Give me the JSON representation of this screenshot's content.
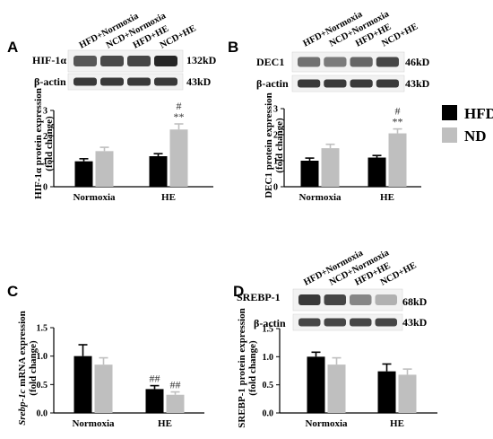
{
  "legend": {
    "items": [
      {
        "label": "HFD",
        "color": "#000000"
      },
      {
        "label": "ND",
        "color": "#bfbfbf"
      }
    ]
  },
  "panels": [
    {
      "letter": "A",
      "lanes": [
        "HFD+Normoxia",
        "NCD+Normoxia",
        "HFD+HE",
        "NCD+HE"
      ],
      "blots": [
        {
          "protein": "HIF-1α",
          "size": "132kD"
        },
        {
          "protein": "β-actin",
          "size": "43kD"
        }
      ]
    },
    {
      "letter": "B",
      "lanes": [
        "HFD+Normoxia",
        "NCD+Normoxia",
        "HFD+HE",
        "NCD+HE"
      ],
      "blots": [
        {
          "protein": "DEC1",
          "size": "46kD"
        },
        {
          "protein": "β-actin",
          "size": "43kD"
        }
      ]
    },
    {
      "letter": "C",
      "lanes": [],
      "blots": []
    },
    {
      "letter": "D",
      "lanes": [
        "HFD+Normoxia",
        "NCD+Normoxia",
        "HFD+HE",
        "NCD+HE"
      ],
      "blots": [
        {
          "protein": "SREBP-1",
          "size": "68kD"
        },
        {
          "protein": "β-actin",
          "size": "43kD"
        }
      ]
    }
  ],
  "chart_data": [
    {
      "panel": "A",
      "type": "bar",
      "ylabel": "HIF-1α protein expression (fold change)",
      "xlabel": "",
      "categories": [
        "Normoxia",
        "HE"
      ],
      "ylim": [
        0,
        3
      ],
      "yticks": [
        "0",
        "1",
        "2",
        "3"
      ],
      "series": [
        {
          "name": "HFD",
          "color": "#000000",
          "values": [
            1.0,
            1.2
          ],
          "errors": [
            0.1,
            0.1
          ]
        },
        {
          "name": "ND",
          "color": "#bfbfbf",
          "values": [
            1.4,
            2.25
          ],
          "errors": [
            0.15,
            0.22
          ]
        }
      ],
      "annotations": [
        {
          "category": "HE",
          "series": "ND",
          "lines": [
            "#",
            "**"
          ]
        }
      ]
    },
    {
      "panel": "B",
      "type": "bar",
      "ylabel": "DEC1 protein expression (fold change)",
      "xlabel": "",
      "categories": [
        "Normoxia",
        "HE"
      ],
      "ylim": [
        0,
        3
      ],
      "yticks": [
        "0",
        "1",
        "2",
        "3"
      ],
      "series": [
        {
          "name": "HFD",
          "color": "#000000",
          "values": [
            1.0,
            1.12
          ],
          "errors": [
            0.1,
            0.08
          ]
        },
        {
          "name": "ND",
          "color": "#bfbfbf",
          "values": [
            1.48,
            2.05
          ],
          "errors": [
            0.15,
            0.17
          ]
        }
      ],
      "annotations": [
        {
          "category": "HE",
          "series": "ND",
          "lines": [
            "#",
            "**"
          ]
        }
      ]
    },
    {
      "panel": "C",
      "type": "bar",
      "ylabel_italic": "Srebp-1c",
      "ylabel": " mRNA expression (fold change)",
      "xlabel": "",
      "categories": [
        "Normoxia",
        "HE"
      ],
      "ylim": [
        0,
        1.5
      ],
      "yticks": [
        "0.0",
        "0.5",
        "1.0",
        "1.5"
      ],
      "series": [
        {
          "name": "HFD",
          "color": "#000000",
          "values": [
            1.0,
            0.42
          ],
          "errors": [
            0.2,
            0.06
          ]
        },
        {
          "name": "ND",
          "color": "#bfbfbf",
          "values": [
            0.85,
            0.32
          ],
          "errors": [
            0.12,
            0.05
          ]
        }
      ],
      "annotations": [
        {
          "category": "HE",
          "series": "HFD",
          "lines": [
            "##"
          ]
        },
        {
          "category": "HE",
          "series": "ND",
          "lines": [
            "##"
          ]
        }
      ]
    },
    {
      "panel": "D",
      "type": "bar",
      "ylabel": "SREBP-1 protein expression (fold change)",
      "xlabel": "",
      "categories": [
        "Normoxia",
        "HE"
      ],
      "ylim": [
        0,
        1.5
      ],
      "yticks": [
        "0.0",
        "0.5",
        "1.0",
        "1.5"
      ],
      "series": [
        {
          "name": "HFD",
          "color": "#000000",
          "values": [
            1.0,
            0.74
          ],
          "errors": [
            0.08,
            0.13
          ]
        },
        {
          "name": "ND",
          "color": "#bfbfbf",
          "values": [
            0.86,
            0.68
          ],
          "errors": [
            0.12,
            0.1
          ]
        }
      ],
      "annotations": []
    }
  ]
}
